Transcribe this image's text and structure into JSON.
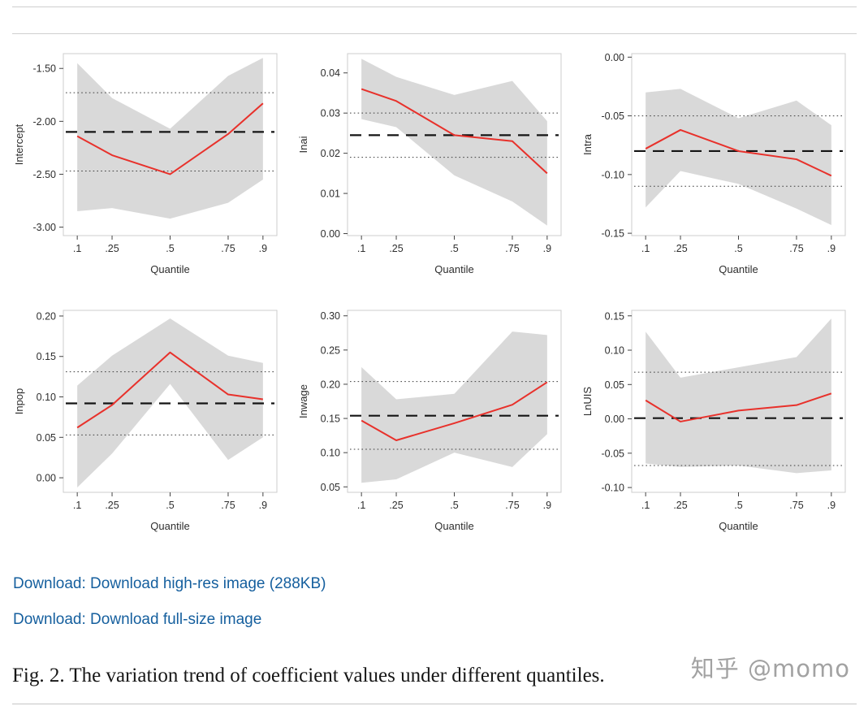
{
  "page": {
    "download_link_1": "Download: Download high-res image (288KB)",
    "download_link_2": "Download: Download full-size image",
    "caption": "Fig. 2. The variation trend of coefficient values under different quantiles.",
    "watermark": "知乎 @momo"
  },
  "colors": {
    "line": "#e8312b",
    "band": "#d9d9d9",
    "dashed": "#141414",
    "dotted": "#3c3c3c",
    "link": "#155f9e"
  },
  "chart_data": [
    {
      "type": "line",
      "ylabel": "Intercept",
      "xlabel": "Quantile",
      "x": [
        0.1,
        0.25,
        0.5,
        0.75,
        0.9
      ],
      "xtick_labels": [
        ".1",
        ".25",
        ".5",
        ".75",
        ".9"
      ],
      "yticks": [
        -1.5,
        -2.0,
        -2.5,
        -3.0
      ],
      "ytick_labels": [
        "-1.50",
        "-2.00",
        "-2.50",
        "-3.00"
      ],
      "ylim": [
        -3.08,
        -1.36
      ],
      "series": {
        "quantile_coefficient": [
          -2.14,
          -2.32,
          -2.5,
          -2.12,
          -1.83
        ],
        "ci_upper": [
          -1.45,
          -1.78,
          -2.07,
          -1.57,
          -1.4
        ],
        "ci_lower": [
          -2.85,
          -2.82,
          -2.92,
          -2.77,
          -2.55
        ],
        "ols_estimate": -2.1,
        "ols_ci": [
          -1.73,
          -2.47
        ]
      }
    },
    {
      "type": "line",
      "ylabel": "Inai",
      "xlabel": "Quantile",
      "x": [
        0.1,
        0.25,
        0.5,
        0.75,
        0.9
      ],
      "xtick_labels": [
        ".1",
        ".25",
        ".5",
        ".75",
        ".9"
      ],
      "yticks": [
        0.04,
        0.03,
        0.02,
        0.01,
        0.0
      ],
      "ytick_labels": [
        "0.04",
        "0.03",
        "0.02",
        "0.01",
        "0.00"
      ],
      "ylim": [
        -0.0005,
        0.0448
      ],
      "series": {
        "quantile_coefficient": [
          0.036,
          0.033,
          0.0245,
          0.023,
          0.015
        ],
        "ci_upper": [
          0.0435,
          0.039,
          0.0345,
          0.038,
          0.028
        ],
        "ci_lower": [
          0.0285,
          0.0265,
          0.0145,
          0.008,
          0.002
        ],
        "ols_estimate": 0.0245,
        "ols_ci": [
          0.03,
          0.019
        ]
      }
    },
    {
      "type": "line",
      "ylabel": "Intra",
      "xlabel": "Quantile",
      "x": [
        0.1,
        0.25,
        0.5,
        0.75,
        0.9
      ],
      "xtick_labels": [
        ".1",
        ".25",
        ".5",
        ".75",
        ".9"
      ],
      "yticks": [
        0.0,
        -0.05,
        -0.1,
        -0.15
      ],
      "ytick_labels": [
        "0.00",
        "-0.05",
        "-0.10",
        "-0.15"
      ],
      "ylim": [
        -0.152,
        0.003
      ],
      "series": {
        "quantile_coefficient": [
          -0.078,
          -0.062,
          -0.08,
          -0.087,
          -0.101
        ],
        "ci_upper": [
          -0.03,
          -0.027,
          -0.052,
          -0.037,
          -0.058
        ],
        "ci_lower": [
          -0.128,
          -0.097,
          -0.108,
          -0.129,
          -0.143
        ],
        "ols_estimate": -0.08,
        "ols_ci": [
          -0.05,
          -0.11
        ]
      }
    },
    {
      "type": "line",
      "ylabel": "Inpop",
      "xlabel": "Quantile",
      "x": [
        0.1,
        0.25,
        0.5,
        0.75,
        0.9
      ],
      "xtick_labels": [
        ".1",
        ".25",
        ".5",
        ".75",
        ".9"
      ],
      "yticks": [
        0.2,
        0.15,
        0.1,
        0.05,
        0.0
      ],
      "ytick_labels": [
        "0.20",
        "0.15",
        "0.10",
        "0.05",
        "0.00"
      ],
      "ylim": [
        -0.018,
        0.207
      ],
      "series": {
        "quantile_coefficient": [
          0.062,
          0.09,
          0.155,
          0.103,
          0.097
        ],
        "ci_upper": [
          0.114,
          0.151,
          0.197,
          0.151,
          0.142
        ],
        "ci_lower": [
          -0.012,
          0.03,
          0.116,
          0.022,
          0.05
        ],
        "ols_estimate": 0.092,
        "ols_ci": [
          0.131,
          0.053
        ]
      }
    },
    {
      "type": "line",
      "ylabel": "Inwage",
      "xlabel": "Quantile",
      "x": [
        0.1,
        0.25,
        0.5,
        0.75,
        0.9
      ],
      "xtick_labels": [
        ".1",
        ".25",
        ".5",
        ".75",
        ".9"
      ],
      "yticks": [
        0.3,
        0.25,
        0.2,
        0.15,
        0.1,
        0.05
      ],
      "ytick_labels": [
        "0.30",
        "0.25",
        "0.20",
        "0.15",
        "0.10",
        "0.05"
      ],
      "ylim": [
        0.042,
        0.308
      ],
      "series": {
        "quantile_coefficient": [
          0.147,
          0.118,
          0.143,
          0.17,
          0.203
        ],
        "ci_upper": [
          0.225,
          0.178,
          0.186,
          0.277,
          0.272
        ],
        "ci_lower": [
          0.056,
          0.061,
          0.1,
          0.079,
          0.127
        ],
        "ols_estimate": 0.154,
        "ols_ci": [
          0.204,
          0.105
        ]
      }
    },
    {
      "type": "line",
      "ylabel": "LnUIS",
      "xlabel": "Quantile",
      "x": [
        0.1,
        0.25,
        0.5,
        0.75,
        0.9
      ],
      "xtick_labels": [
        ".1",
        ".25",
        ".5",
        ".75",
        ".9"
      ],
      "yticks": [
        0.15,
        0.1,
        0.05,
        0.0,
        -0.05,
        -0.1
      ],
      "ytick_labels": [
        "0.15",
        "0.10",
        "0.05",
        "0.00",
        "-0.05",
        "-0.10"
      ],
      "ylim": [
        -0.107,
        0.158
      ],
      "series": {
        "quantile_coefficient": [
          0.027,
          -0.004,
          0.012,
          0.02,
          0.037
        ],
        "ci_upper": [
          0.127,
          0.06,
          0.075,
          0.09,
          0.146
        ],
        "ci_lower": [
          -0.065,
          -0.07,
          -0.068,
          -0.079,
          -0.075
        ],
        "ols_estimate": 0.001,
        "ols_ci": [
          0.068,
          -0.068
        ]
      }
    }
  ]
}
